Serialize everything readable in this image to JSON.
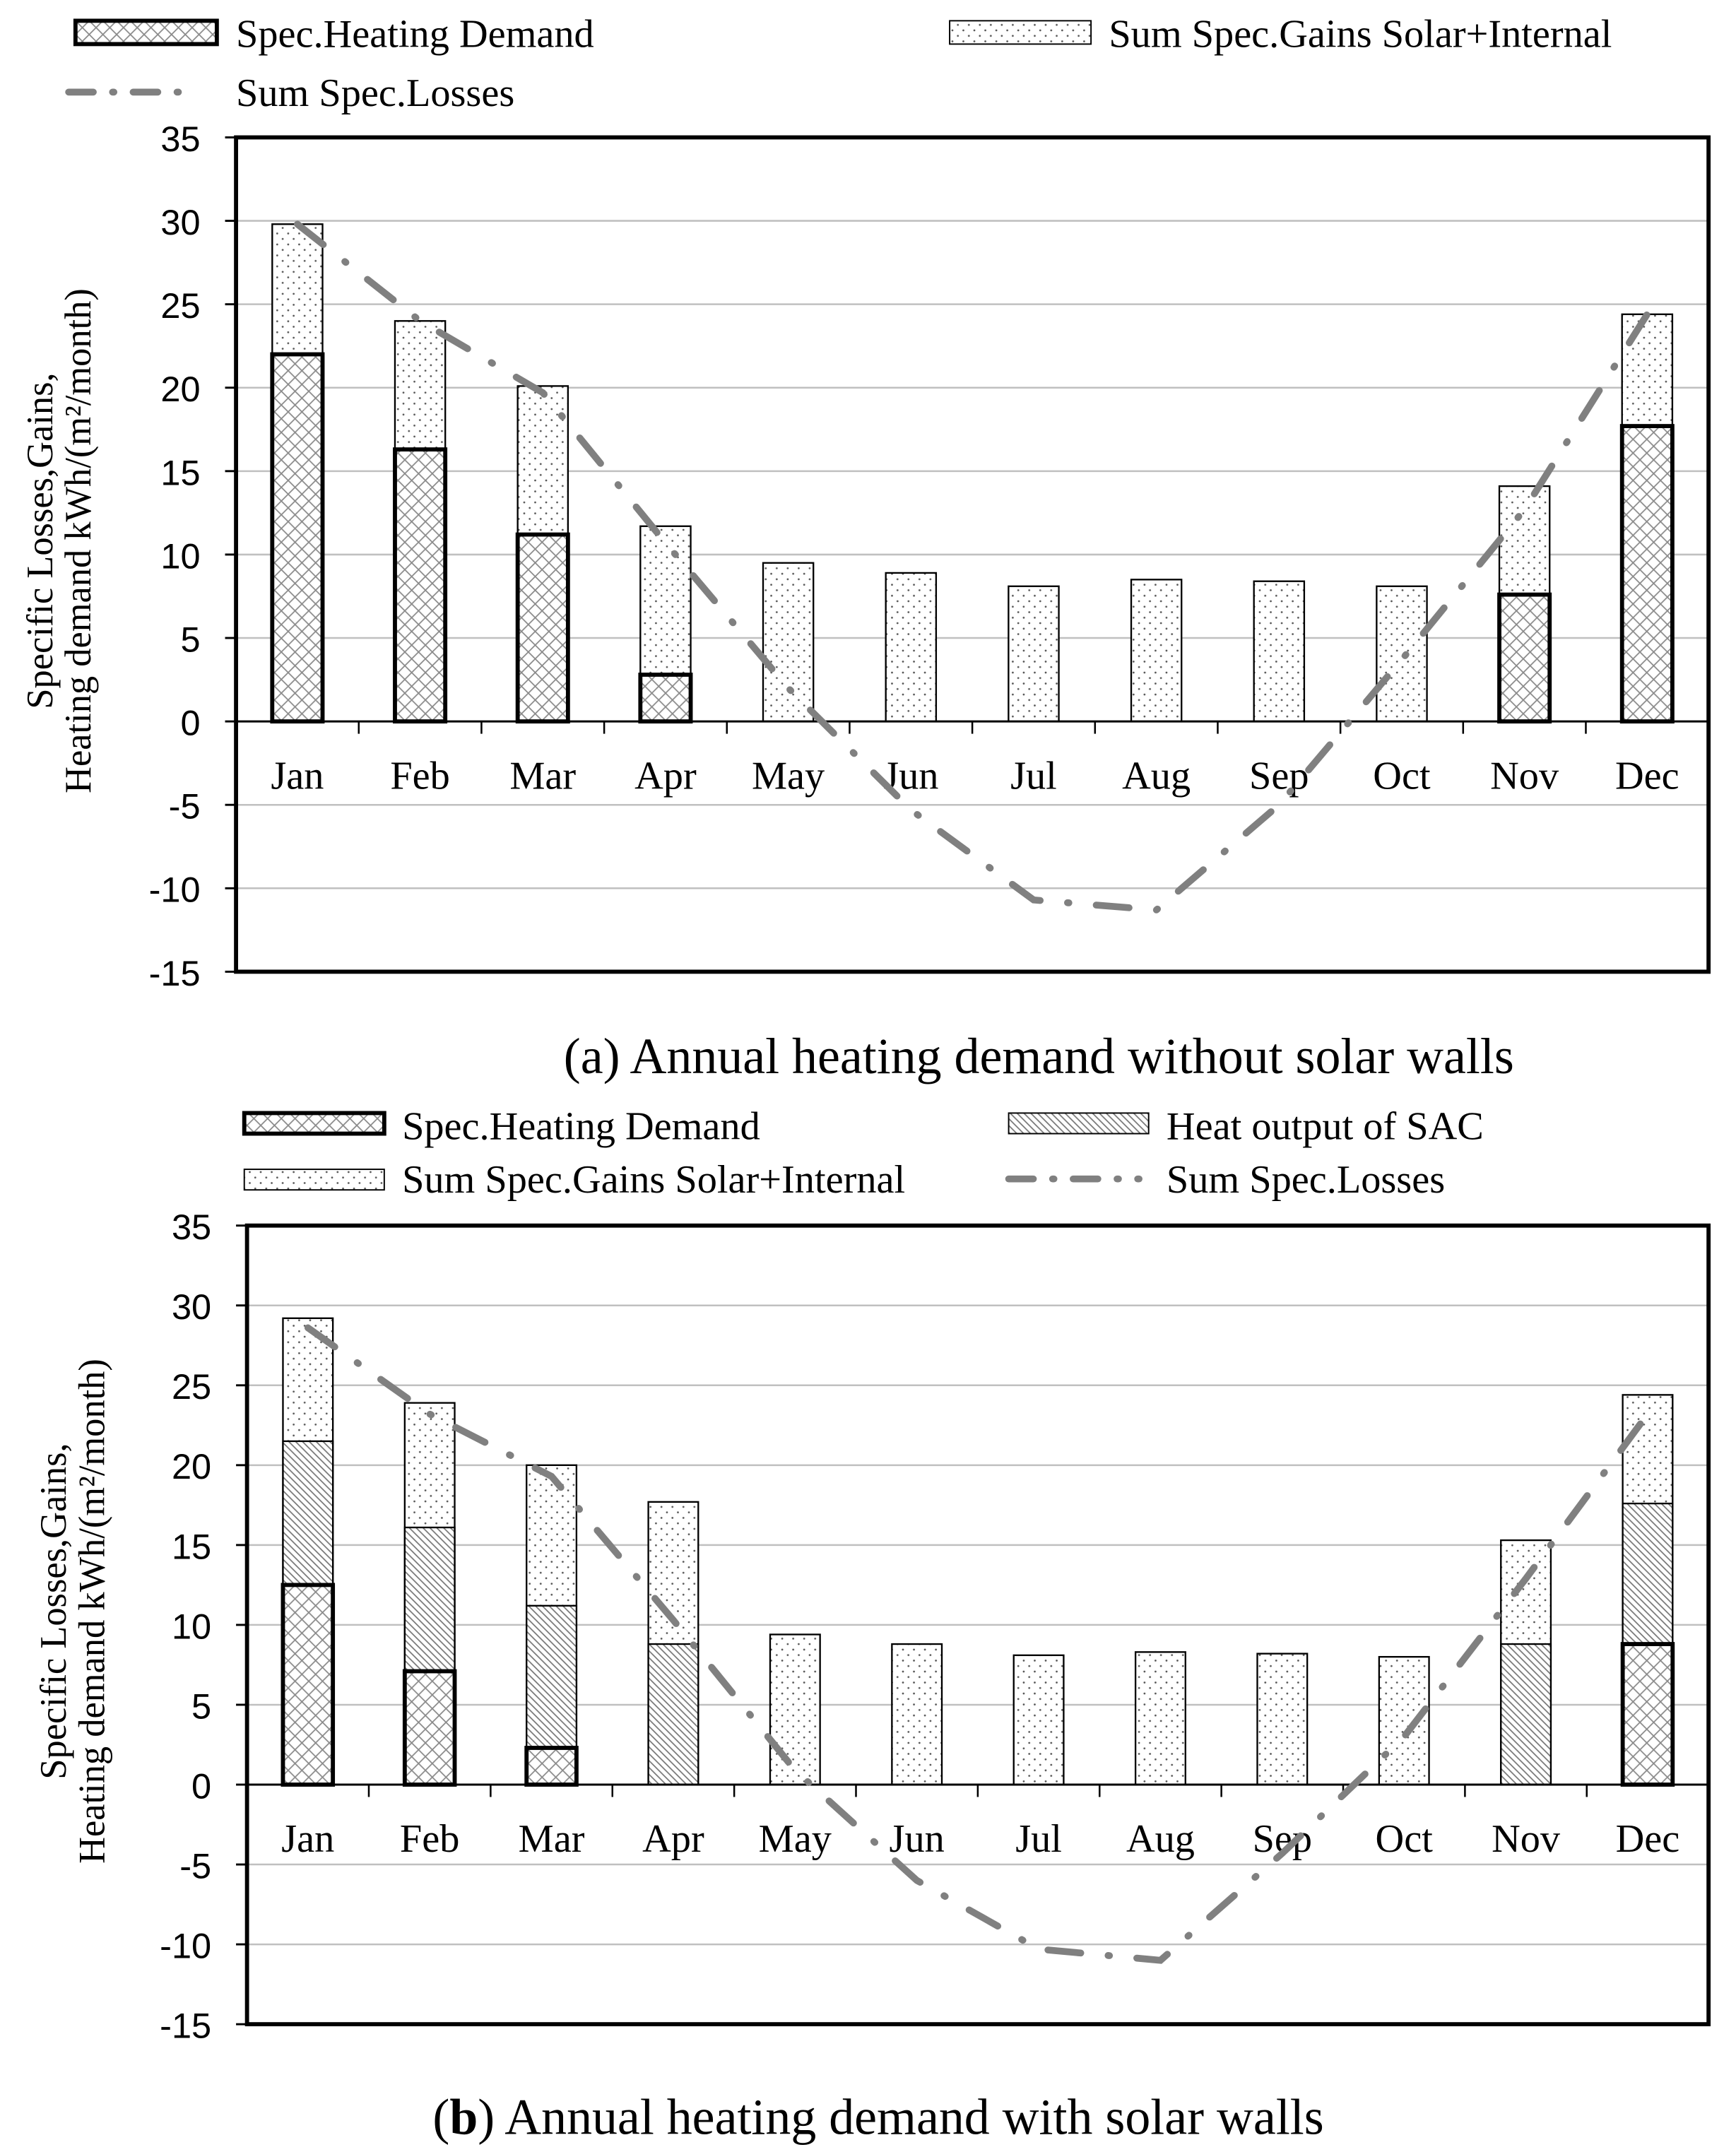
{
  "chart_data": [
    {
      "type": "bar",
      "title": "(a) Annual heating demand without solar walls",
      "ylabel": [
        "Specific Losses,Gains,",
        "Heating demand kWh/(m²/month)"
      ],
      "xlabel": "",
      "ylim": [
        -15,
        35
      ],
      "yticks": [
        35,
        30,
        25,
        20,
        15,
        10,
        5,
        0,
        -5,
        -10,
        -15
      ],
      "grid": true,
      "legend_position": "top",
      "categories": [
        "Jan",
        "Feb",
        "Mar",
        "Apr",
        "May",
        "Jun",
        "Jul",
        "Aug",
        "Sep",
        "Oct",
        "Nov",
        "Dec"
      ],
      "series": [
        {
          "name": "Spec.Heating Demand",
          "kind": "bar-crosshatch",
          "values": [
            22.0,
            16.3,
            11.2,
            2.8,
            0,
            0,
            0,
            0,
            0,
            0,
            7.6,
            17.7
          ]
        },
        {
          "name": "Sum Spec.Gains Solar+Internal",
          "kind": "bar-dotted",
          "values": [
            29.8,
            24.0,
            20.1,
            11.7,
            9.5,
            8.9,
            8.1,
            8.5,
            8.4,
            8.1,
            14.1,
            24.4
          ]
        },
        {
          "name": "Sum Spec.Losses",
          "kind": "line-dashdot",
          "values": [
            29.8,
            24.0,
            19.7,
            10.7,
            2.0,
            -5.3,
            -10.7,
            -11.3,
            -5.0,
            3.7,
            12.7,
            24.4
          ]
        }
      ]
    },
    {
      "type": "bar",
      "title_bold": "b",
      "title": "(b) Annual heating demand with solar walls",
      "title_prefix": "(",
      "title_suffix": ") Annual heating demand with solar walls",
      "ylabel": [
        "Specific Losses,Gains,",
        "Heating demand kWh/(m²/month)"
      ],
      "xlabel": "",
      "ylim": [
        -15,
        35
      ],
      "yticks": [
        35,
        30,
        25,
        20,
        15,
        10,
        5,
        0,
        -5,
        -10,
        -15
      ],
      "grid": true,
      "legend_position": "top",
      "categories": [
        "Jan",
        "Feb",
        "Mar",
        "Apr",
        "May",
        "Jun",
        "Jul",
        "Aug",
        "Sep",
        "Oct",
        "Nov",
        "Dec"
      ],
      "series": [
        {
          "name": "Spec.Heating Demand",
          "kind": "bar-crosshatch",
          "values": [
            12.5,
            7.1,
            2.3,
            0,
            0,
            0,
            0,
            0,
            0,
            0,
            0,
            8.8
          ]
        },
        {
          "name": "Heat output of SAC",
          "kind": "bar-hatch",
          "values": [
            21.5,
            16.1,
            11.2,
            8.8,
            0,
            0,
            0,
            0,
            0,
            0,
            8.8,
            17.6
          ]
        },
        {
          "name": "Sum Spec.Gains Solar+Internal",
          "kind": "bar-dotted",
          "values": [
            29.2,
            23.9,
            20.0,
            17.7,
            9.4,
            8.8,
            8.1,
            8.3,
            8.2,
            8.0,
            15.3,
            24.4
          ]
        },
        {
          "name": "Sum Spec.Losses",
          "kind": "line-dashdot",
          "values": [
            28.6,
            23.2,
            19.3,
            10.3,
            0.9,
            -6.0,
            -10.3,
            -11.0,
            -4.3,
            3.0,
            12.9,
            23.2
          ]
        }
      ]
    }
  ],
  "colors": {
    "line": "#808080",
    "grid": "#c0c0c0",
    "axis": "#000000",
    "pattern": "#8a8a8a"
  }
}
